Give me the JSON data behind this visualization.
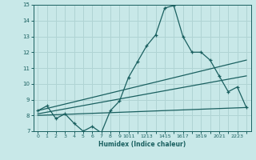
{
  "xlabel": "Humidex (Indice chaleur)",
  "bg_color": "#c8e8e8",
  "grid_color": "#b0d4d4",
  "line_color": "#1a6060",
  "xlim": [
    -0.5,
    23.5
  ],
  "ylim": [
    7,
    15
  ],
  "xtick_positions": [
    0,
    1,
    2,
    3,
    4,
    5,
    6,
    7,
    8,
    9,
    10,
    11,
    12,
    13,
    14,
    15,
    16,
    17,
    18,
    19,
    20,
    21,
    22,
    23
  ],
  "xtick_labels": [
    "0",
    "1",
    "2",
    "3",
    "4",
    "5",
    "6",
    "7",
    "8",
    "9",
    "1011",
    "1213",
    "1415",
    "1617",
    "1819",
    "2021",
    "2223"
  ],
  "xtick_positions_shown": [
    0,
    1,
    2,
    3,
    4,
    5,
    6,
    7,
    8,
    9,
    10,
    12,
    14,
    16,
    18,
    20,
    22
  ],
  "ytick_positions": [
    7,
    8,
    9,
    10,
    11,
    12,
    13,
    14,
    15
  ],
  "ytick_labels": [
    "7",
    "8",
    "9",
    "10",
    "11",
    "12",
    "13",
    "14",
    "15"
  ],
  "series1_x": [
    0,
    1,
    2,
    3,
    4,
    5,
    6,
    7,
    8,
    9,
    10,
    11,
    12,
    13,
    14,
    15,
    16,
    17,
    18,
    19,
    20,
    21,
    22,
    23
  ],
  "series1_y": [
    8.3,
    8.6,
    7.8,
    8.1,
    7.5,
    7.0,
    7.3,
    6.9,
    8.3,
    8.9,
    10.4,
    11.4,
    12.4,
    13.1,
    14.8,
    14.95,
    13.0,
    12.0,
    12.0,
    11.5,
    10.5,
    9.5,
    9.8,
    8.5
  ],
  "series2_x": [
    0,
    23
  ],
  "series2_y": [
    8.3,
    11.5
  ],
  "series3_x": [
    0,
    23
  ],
  "series3_y": [
    8.0,
    8.5
  ],
  "series4_x": [
    0,
    23
  ],
  "series4_y": [
    8.1,
    10.5
  ]
}
